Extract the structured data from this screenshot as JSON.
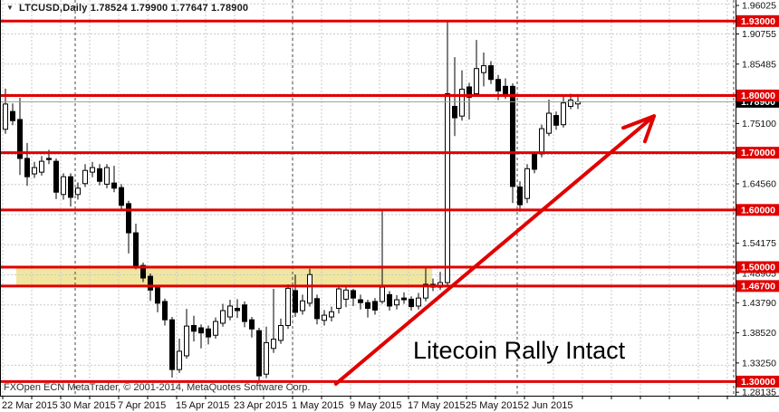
{
  "title": {
    "marker": "▼",
    "text": "LTCUSD,Daily  1.78524 1.79900 1.77647 1.78900"
  },
  "annotation": {
    "text": "Litecoin Rally Intact"
  },
  "copyright": "FXOpen ECN MetaTrader, © 2001-2014, MetaQuotes Software Corp.",
  "colors": {
    "background": "#ffffff",
    "level_line": "#e00000",
    "zone_fill": "#f0e6a0",
    "bull_fill": "#ffffff",
    "bear_fill": "#000000",
    "candle_outline": "#000000",
    "grid": "#c9c9c9",
    "month_separator": "#444444",
    "current_price_line": "#999999",
    "axis_text": "#111111",
    "badge_text": "#ffffff",
    "current_badge_bg": "#000000",
    "arrow": "#e00000"
  },
  "chart_data": {
    "type": "candlestick",
    "symbol": "LTCUSD",
    "timeframe": "Daily",
    "current_bar": {
      "open": 1.78524,
      "high": 1.799,
      "low": 1.77647,
      "close": 1.789
    },
    "y_ticks": [
      {
        "label": "1.96025",
        "price": 1.96025
      },
      {
        "label": "1.90755",
        "price": 1.90755
      },
      {
        "label": "1.85485",
        "price": 1.85485
      },
      {
        "label": "1.75100",
        "price": 1.751
      },
      {
        "label": "1.64560",
        "price": 1.6456
      },
      {
        "label": "1.54175",
        "price": 1.54175
      },
      {
        "label": "1.48905",
        "price": 1.48905
      },
      {
        "label": "1.43790",
        "price": 1.4379
      },
      {
        "label": "1.38520",
        "price": 1.3852
      },
      {
        "label": "1.33250",
        "price": 1.3325
      },
      {
        "label": "1.28135",
        "price": 1.28135
      }
    ],
    "levels": [
      {
        "label": "1.93000",
        "price": 1.93
      },
      {
        "label": "1.80000",
        "price": 1.8
      },
      {
        "label": "1.70000",
        "price": 1.7
      },
      {
        "label": "1.60000",
        "price": 1.6
      },
      {
        "label": "1.50000",
        "price": 1.5
      },
      {
        "label": "1.46700",
        "price": 1.467
      },
      {
        "label": "1.30000",
        "price": 1.3
      }
    ],
    "current_price": {
      "label": "1.78900",
      "price": 1.789
    },
    "x_ticks": [
      {
        "label": "22 Mar 2015",
        "candle": 0
      },
      {
        "label": "30 Mar 2015",
        "candle": 8
      },
      {
        "label": "7 Apr 2015",
        "candle": 16
      },
      {
        "label": "15 Apr 2015",
        "candle": 24
      },
      {
        "label": "23 Apr 2015",
        "candle": 32
      },
      {
        "label": "1 May 2015",
        "candle": 40
      },
      {
        "label": "9 May 2015",
        "candle": 48
      },
      {
        "label": "17 May 2015",
        "candle": 56
      },
      {
        "label": "25 May 2015",
        "candle": 64
      },
      {
        "label": "2 Jun 2015",
        "candle": 72
      }
    ],
    "month_separator_candles": [
      10,
      40,
      71
    ],
    "zone": {
      "price_top": 1.5,
      "price_bottom": 1.467,
      "candle_start": 1.5,
      "candle_end": 58.9
    },
    "trend_arrow": {
      "from_candle": 45.6,
      "from_price": 1.296,
      "to_candle": 89.5,
      "to_price": 1.764
    },
    "y_range": [
      1.26135,
      1.967
    ],
    "candles": [
      {
        "d": "22 Mar",
        "o": 1.741,
        "h": 1.812,
        "l": 1.733,
        "c": 1.785
      },
      {
        "d": "23 Mar",
        "o": 1.772,
        "h": 1.786,
        "l": 1.748,
        "c": 1.756
      },
      {
        "d": "24 Mar",
        "o": 1.758,
        "h": 1.796,
        "l": 1.661,
        "c": 1.69
      },
      {
        "d": "25 Mar",
        "o": 1.69,
        "h": 1.717,
        "l": 1.642,
        "c": 1.658
      },
      {
        "d": "26 Mar",
        "o": 1.663,
        "h": 1.684,
        "l": 1.656,
        "c": 1.674
      },
      {
        "d": "27 Mar",
        "o": 1.666,
        "h": 1.694,
        "l": 1.66,
        "c": 1.685
      },
      {
        "d": "28 Mar",
        "o": 1.69,
        "h": 1.705,
        "l": 1.68,
        "c": 1.688
      },
      {
        "d": "29 Mar",
        "o": 1.685,
        "h": 1.69,
        "l": 1.619,
        "c": 1.631
      },
      {
        "d": "30 Mar",
        "o": 1.627,
        "h": 1.664,
        "l": 1.618,
        "c": 1.658
      },
      {
        "d": "31 Mar",
        "o": 1.658,
        "h": 1.664,
        "l": 1.606,
        "c": 1.622
      },
      {
        "d": "1 Apr",
        "o": 1.627,
        "h": 1.648,
        "l": 1.618,
        "c": 1.638
      },
      {
        "d": "2 Apr",
        "o": 1.646,
        "h": 1.68,
        "l": 1.64,
        "c": 1.669
      },
      {
        "d": "3 Apr",
        "o": 1.666,
        "h": 1.684,
        "l": 1.657,
        "c": 1.674
      },
      {
        "d": "4 Apr",
        "o": 1.672,
        "h": 1.68,
        "l": 1.643,
        "c": 1.65
      },
      {
        "d": "5 Apr",
        "o": 1.645,
        "h": 1.68,
        "l": 1.638,
        "c": 1.674
      },
      {
        "d": "6 Apr",
        "o": 1.647,
        "h": 1.677,
        "l": 1.631,
        "c": 1.638
      },
      {
        "d": "7 Apr",
        "o": 1.639,
        "h": 1.645,
        "l": 1.598,
        "c": 1.608
      },
      {
        "d": "8 Apr",
        "o": 1.611,
        "h": 1.616,
        "l": 1.524,
        "c": 1.56
      },
      {
        "d": "9 Apr",
        "o": 1.56,
        "h": 1.576,
        "l": 1.496,
        "c": 1.501
      },
      {
        "d": "10 Apr",
        "o": 1.503,
        "h": 1.508,
        "l": 1.474,
        "c": 1.481
      },
      {
        "d": "11 Apr",
        "o": 1.484,
        "h": 1.489,
        "l": 1.441,
        "c": 1.46
      },
      {
        "d": "12 Apr",
        "o": 1.464,
        "h": 1.469,
        "l": 1.421,
        "c": 1.437
      },
      {
        "d": "13 Apr",
        "o": 1.44,
        "h": 1.445,
        "l": 1.398,
        "c": 1.408
      },
      {
        "d": "14 Apr",
        "o": 1.408,
        "h": 1.413,
        "l": 1.307,
        "c": 1.321
      },
      {
        "d": "15 Apr",
        "o": 1.321,
        "h": 1.375,
        "l": 1.315,
        "c": 1.353
      },
      {
        "d": "16 Apr",
        "o": 1.345,
        "h": 1.427,
        "l": 1.34,
        "c": 1.397
      },
      {
        "d": "17 Apr",
        "o": 1.398,
        "h": 1.415,
        "l": 1.37,
        "c": 1.388
      },
      {
        "d": "18 Apr",
        "o": 1.394,
        "h": 1.4,
        "l": 1.358,
        "c": 1.385
      },
      {
        "d": "19 Apr",
        "o": 1.392,
        "h": 1.398,
        "l": 1.365,
        "c": 1.378
      },
      {
        "d": "20 Apr",
        "o": 1.381,
        "h": 1.412,
        "l": 1.375,
        "c": 1.405
      },
      {
        "d": "21 Apr",
        "o": 1.402,
        "h": 1.436,
        "l": 1.396,
        "c": 1.424
      },
      {
        "d": "22 Apr",
        "o": 1.413,
        "h": 1.443,
        "l": 1.407,
        "c": 1.432
      },
      {
        "d": "23 Apr",
        "o": 1.428,
        "h": 1.444,
        "l": 1.411,
        "c": 1.424
      },
      {
        "d": "24 Apr",
        "o": 1.434,
        "h": 1.44,
        "l": 1.395,
        "c": 1.405
      },
      {
        "d": "25 Apr",
        "o": 1.408,
        "h": 1.413,
        "l": 1.377,
        "c": 1.392
      },
      {
        "d": "26 Apr",
        "o": 1.389,
        "h": 1.394,
        "l": 1.302,
        "c": 1.31
      },
      {
        "d": "27 Apr",
        "o": 1.313,
        "h": 1.396,
        "l": 1.306,
        "c": 1.368
      },
      {
        "d": "28 Apr",
        "o": 1.358,
        "h": 1.462,
        "l": 1.35,
        "c": 1.374
      },
      {
        "d": "29 Apr",
        "o": 1.372,
        "h": 1.41,
        "l": 1.366,
        "c": 1.398
      },
      {
        "d": "30 Apr",
        "o": 1.398,
        "h": 1.47,
        "l": 1.392,
        "c": 1.463
      },
      {
        "d": "1 May",
        "o": 1.459,
        "h": 1.487,
        "l": 1.413,
        "c": 1.421
      },
      {
        "d": "2 May",
        "o": 1.424,
        "h": 1.452,
        "l": 1.417,
        "c": 1.441
      },
      {
        "d": "3 May",
        "o": 1.437,
        "h": 1.497,
        "l": 1.431,
        "c": 1.487
      },
      {
        "d": "4 May",
        "o": 1.445,
        "h": 1.452,
        "l": 1.4,
        "c": 1.41
      },
      {
        "d": "5 May",
        "o": 1.407,
        "h": 1.425,
        "l": 1.398,
        "c": 1.416
      },
      {
        "d": "6 May",
        "o": 1.413,
        "h": 1.431,
        "l": 1.405,
        "c": 1.422
      },
      {
        "d": "7 May",
        "o": 1.428,
        "h": 1.468,
        "l": 1.419,
        "c": 1.462
      },
      {
        "d": "8 May",
        "o": 1.444,
        "h": 1.466,
        "l": 1.43,
        "c": 1.46
      },
      {
        "d": "9 May",
        "o": 1.459,
        "h": 1.462,
        "l": 1.432,
        "c": 1.446
      },
      {
        "d": "10 May",
        "o": 1.443,
        "h": 1.452,
        "l": 1.426,
        "c": 1.438
      },
      {
        "d": "11 May",
        "o": 1.438,
        "h": 1.443,
        "l": 1.412,
        "c": 1.428
      },
      {
        "d": "12 May",
        "o": 1.44,
        "h": 1.446,
        "l": 1.417,
        "c": 1.425
      },
      {
        "d": "13 May",
        "o": 1.44,
        "h": 1.601,
        "l": 1.436,
        "c": 1.465
      },
      {
        "d": "14 May",
        "o": 1.452,
        "h": 1.458,
        "l": 1.424,
        "c": 1.432
      },
      {
        "d": "15 May",
        "o": 1.434,
        "h": 1.451,
        "l": 1.426,
        "c": 1.443
      },
      {
        "d": "16 May",
        "o": 1.446,
        "h": 1.456,
        "l": 1.436,
        "c": 1.443
      },
      {
        "d": "17 May",
        "o": 1.444,
        "h": 1.449,
        "l": 1.424,
        "c": 1.431
      },
      {
        "d": "18 May",
        "o": 1.432,
        "h": 1.455,
        "l": 1.426,
        "c": 1.446
      },
      {
        "d": "19 May",
        "o": 1.446,
        "h": 1.502,
        "l": 1.44,
        "c": 1.47
      },
      {
        "d": "20 May",
        "o": 1.47,
        "h": 1.48,
        "l": 1.458,
        "c": 1.465
      },
      {
        "d": "21 May",
        "o": 1.465,
        "h": 1.492,
        "l": 1.46,
        "c": 1.473
      },
      {
        "d": "22 May",
        "o": 1.473,
        "h": 1.93,
        "l": 1.468,
        "c": 1.803
      },
      {
        "d": "23 May",
        "o": 1.781,
        "h": 1.867,
        "l": 1.729,
        "c": 1.761
      },
      {
        "d": "24 May",
        "o": 1.764,
        "h": 1.844,
        "l": 1.756,
        "c": 1.811
      },
      {
        "d": "25 May",
        "o": 1.815,
        "h": 1.822,
        "l": 1.758,
        "c": 1.797
      },
      {
        "d": "26 May",
        "o": 1.803,
        "h": 1.897,
        "l": 1.798,
        "c": 1.847
      },
      {
        "d": "27 May",
        "o": 1.84,
        "h": 1.875,
        "l": 1.816,
        "c": 1.852
      },
      {
        "d": "28 May",
        "o": 1.852,
        "h": 1.86,
        "l": 1.82,
        "c": 1.828
      },
      {
        "d": "29 May",
        "o": 1.828,
        "h": 1.836,
        "l": 1.792,
        "c": 1.808
      },
      {
        "d": "30 May",
        "o": 1.816,
        "h": 1.83,
        "l": 1.794,
        "c": 1.801
      },
      {
        "d": "31 May",
        "o": 1.816,
        "h": 1.821,
        "l": 1.612,
        "c": 1.641
      },
      {
        "d": "1 Jun",
        "o": 1.64,
        "h": 1.65,
        "l": 1.597,
        "c": 1.609
      },
      {
        "d": "2 Jun",
        "o": 1.62,
        "h": 1.68,
        "l": 1.612,
        "c": 1.672
      },
      {
        "d": "3 Jun",
        "o": 1.697,
        "h": 1.702,
        "l": 1.664,
        "c": 1.671
      },
      {
        "d": "4 Jun",
        "o": 1.698,
        "h": 1.749,
        "l": 1.692,
        "c": 1.742
      },
      {
        "d": "5 Jun",
        "o": 1.734,
        "h": 1.793,
        "l": 1.729,
        "c": 1.769
      },
      {
        "d": "6 Jun",
        "o": 1.765,
        "h": 1.772,
        "l": 1.74,
        "c": 1.748
      },
      {
        "d": "7 Jun",
        "o": 1.749,
        "h": 1.798,
        "l": 1.744,
        "c": 1.787
      },
      {
        "d": "8 Jun",
        "o": 1.781,
        "h": 1.803,
        "l": 1.776,
        "c": 1.792
      },
      {
        "d": "9 Jun",
        "o": 1.78524,
        "h": 1.799,
        "l": 1.77647,
        "c": 1.789
      }
    ]
  }
}
